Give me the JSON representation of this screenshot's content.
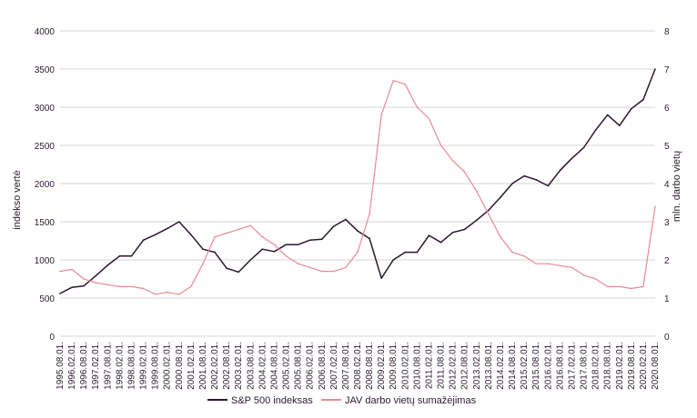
{
  "chart_data": {
    "type": "line",
    "title": "",
    "xlabel": "",
    "ylabel_left": "indekso vertė",
    "ylabel_right": "mln. darbo vietų",
    "ylim_left": [
      0,
      4000
    ],
    "ylim_right": [
      0,
      8
    ],
    "yticks_left": [
      "0",
      "500",
      "1000",
      "1500",
      "2000",
      "2500",
      "3000",
      "3500",
      "4000"
    ],
    "yticks_right": [
      "0",
      "1",
      "2",
      "3",
      "4",
      "5",
      "6",
      "7",
      "8"
    ],
    "x_tick_labels": [
      "1995.08.01.",
      "1996.02.01.",
      "1996.08.01.",
      "1997.02.01.",
      "1997.08.01.",
      "1998.02.01.",
      "1998.08.01.",
      "1999.02.01.",
      "1999.08.01.",
      "2000.02.01.",
      "2000.08.01.",
      "2001.02.01.",
      "2001.08.01.",
      "2002.02.01.",
      "2002.08.01.",
      "2003.02.01.",
      "2003.08.01.",
      "2004.02.01.",
      "2004.08.01.",
      "2005.02.01.",
      "2005.08.01.",
      "2006.02.01.",
      "2006.08.01.",
      "2007.02.01.",
      "2007.08.01.",
      "2008.02.01.",
      "2008.08.01.",
      "2009.02.01.",
      "2009.08.01.",
      "2010.02.01.",
      "2010.08.01.",
      "2011.02.01.",
      "2011.08.01.",
      "2012.02.01.",
      "2012.08.01.",
      "2013.02.01.",
      "2013.08.01.",
      "2014.02.01.",
      "2014.08.01.",
      "2015.02.01.",
      "2015.08.01.",
      "2016.02.01.",
      "2016.08.01.",
      "2017.02.01.",
      "2017.08.01.",
      "2018.02.01.",
      "2018.08.01.",
      "2019.02.01.",
      "2019.08.01.",
      "2020.02.01.",
      "2020.08.01."
    ],
    "grid": true,
    "legend_position": "bottom",
    "series": [
      {
        "name": "S&P 500 indeksas",
        "axis": "left",
        "color": "#2d1530",
        "x": [
          "1995.08.01.",
          "1996.02.01.",
          "1996.08.01.",
          "1997.02.01.",
          "1997.08.01.",
          "1998.02.01.",
          "1998.08.01.",
          "1999.02.01.",
          "1999.08.01.",
          "2000.02.01.",
          "2000.08.01.",
          "2001.02.01.",
          "2001.08.01.",
          "2002.02.01.",
          "2002.08.01.",
          "2003.02.01.",
          "2003.08.01.",
          "2004.02.01.",
          "2004.08.01.",
          "2005.02.01.",
          "2005.08.01.",
          "2006.02.01.",
          "2006.08.01.",
          "2007.02.01.",
          "2007.08.01.",
          "2008.02.01.",
          "2008.08.01.",
          "2009.02.01.",
          "2009.08.01.",
          "2010.02.01.",
          "2010.08.01.",
          "2011.02.01.",
          "2011.08.01.",
          "2012.02.01.",
          "2012.08.01.",
          "2013.02.01.",
          "2013.08.01.",
          "2014.02.01.",
          "2014.08.01.",
          "2015.02.01.",
          "2015.08.01.",
          "2016.02.01.",
          "2016.08.01.",
          "2017.02.01.",
          "2017.08.01.",
          "2018.02.01.",
          "2018.08.01.",
          "2019.02.01.",
          "2019.08.01.",
          "2020.02.01.",
          "2020.08.01."
        ],
        "values": [
          560,
          640,
          660,
          790,
          930,
          1050,
          1050,
          1260,
          1330,
          1410,
          1500,
          1330,
          1140,
          1100,
          890,
          840,
          1000,
          1140,
          1110,
          1200,
          1200,
          1260,
          1270,
          1440,
          1530,
          1380,
          1280,
          760,
          1000,
          1100,
          1100,
          1320,
          1230,
          1360,
          1400,
          1520,
          1650,
          1820,
          2000,
          2100,
          2050,
          1970,
          2170,
          2330,
          2470,
          2700,
          2900,
          2760,
          2980,
          3100,
          3500
        ]
      },
      {
        "name": "JAV darbo vietų sumažėjimas",
        "axis": "right",
        "color": "#e88a96",
        "x": [
          "1995.08.01.",
          "1996.02.01.",
          "1996.08.01.",
          "1997.02.01.",
          "1997.08.01.",
          "1998.02.01.",
          "1998.08.01.",
          "1999.02.01.",
          "1999.08.01.",
          "2000.02.01.",
          "2000.08.01.",
          "2001.02.01.",
          "2001.08.01.",
          "2002.02.01.",
          "2002.08.01.",
          "2003.02.01.",
          "2003.08.01.",
          "2004.02.01.",
          "2004.08.01.",
          "2005.02.01.",
          "2005.08.01.",
          "2006.02.01.",
          "2006.08.01.",
          "2007.02.01.",
          "2007.08.01.",
          "2008.02.01.",
          "2008.08.01.",
          "2009.02.01.",
          "2009.08.01.",
          "2010.02.01.",
          "2010.08.01.",
          "2011.02.01.",
          "2011.08.01.",
          "2012.02.01.",
          "2012.08.01.",
          "2013.02.01.",
          "2013.08.01.",
          "2014.02.01.",
          "2014.08.01.",
          "2015.02.01.",
          "2015.08.01.",
          "2016.02.01.",
          "2016.08.01.",
          "2017.02.01.",
          "2017.08.01.",
          "2018.02.01.",
          "2018.08.01.",
          "2019.02.01.",
          "2019.08.01.",
          "2020.02.01.",
          "2020.08.01."
        ],
        "values": [
          1.7,
          1.75,
          1.5,
          1.4,
          1.35,
          1.3,
          1.3,
          1.25,
          1.1,
          1.15,
          1.1,
          1.3,
          1.9,
          2.6,
          2.7,
          2.8,
          2.9,
          2.6,
          2.4,
          2.1,
          1.9,
          1.8,
          1.7,
          1.7,
          1.8,
          2.2,
          3.2,
          5.8,
          6.7,
          6.6,
          6.0,
          5.7,
          5.0,
          4.6,
          4.3,
          3.8,
          3.2,
          2.6,
          2.2,
          2.1,
          1.9,
          1.9,
          1.85,
          1.8,
          1.6,
          1.5,
          1.3,
          1.3,
          1.25,
          1.3,
          3.4
        ]
      }
    ]
  }
}
